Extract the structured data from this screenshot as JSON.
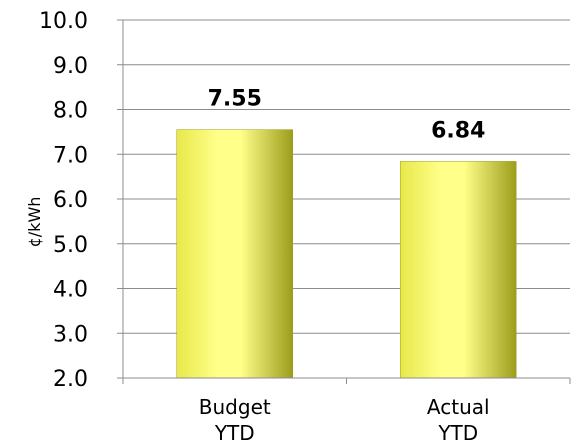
{
  "chart_data": {
    "type": "bar",
    "categories": [
      "Budget\nYTD",
      "Actual\nYTD"
    ],
    "values": [
      7.55,
      6.84
    ],
    "data_labels": [
      "7.55",
      "6.84"
    ],
    "title": "",
    "xlabel": "",
    "ylabel": "¢/kWh",
    "ylim": [
      2.0,
      10.0
    ],
    "yticks": [
      "2.0",
      "3.0",
      "4.0",
      "5.0",
      "6.0",
      "7.0",
      "8.0",
      "9.0",
      "10.0"
    ],
    "grid": true,
    "legend": "none",
    "colors": {
      "bar_light": "#ffff8a",
      "bar_mid": "#e8e84a",
      "bar_dark": "#9c9c1c",
      "grid": "#8c8c8c",
      "axis": "#8c8c8c"
    }
  }
}
